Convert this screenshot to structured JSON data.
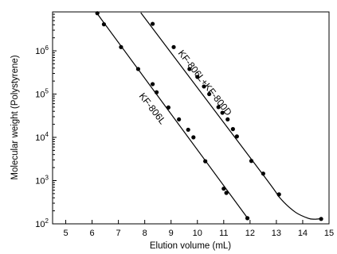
{
  "chart_data": {
    "type": "scatter",
    "xlabel": "Elution volume (mL)",
    "ylabel": "Molecular weight (Polystyrene)",
    "xlim": [
      4.5,
      15
    ],
    "ylim_log10": [
      2,
      6.9
    ],
    "y_scale": "log",
    "grid": false,
    "x_ticks": [
      5,
      6,
      7,
      8,
      9,
      10,
      11,
      12,
      13,
      14,
      15
    ],
    "x_tick_labels": [
      "5",
      "6",
      "7",
      "8",
      "9",
      "10",
      "11",
      "12",
      "13",
      "14",
      "15"
    ],
    "y_ticks": [
      100,
      1000,
      10000,
      100000,
      1000000
    ],
    "y_tick_labels": [
      {
        "base": "10",
        "exp": "2"
      },
      {
        "base": "10",
        "exp": "3"
      },
      {
        "base": "10",
        "exp": "4"
      },
      {
        "base": "10",
        "exp": "5"
      },
      {
        "base": "10",
        "exp": "6"
      }
    ],
    "series": [
      {
        "name": "KF-806L",
        "points": [
          {
            "x": 6.2,
            "y": 7400000
          },
          {
            "x": 6.45,
            "y": 4100000
          },
          {
            "x": 7.1,
            "y": 1220000
          },
          {
            "x": 7.75,
            "y": 380000
          },
          {
            "x": 8.3,
            "y": 170000
          },
          {
            "x": 8.45,
            "y": 110000
          },
          {
            "x": 8.9,
            "y": 49000
          },
          {
            "x": 9.3,
            "y": 26000
          },
          {
            "x": 9.65,
            "y": 15000
          },
          {
            "x": 9.85,
            "y": 10000
          },
          {
            "x": 10.3,
            "y": 2800
          },
          {
            "x": 11.0,
            "y": 650
          },
          {
            "x": 11.1,
            "y": 520
          },
          {
            "x": 11.9,
            "y": 135
          }
        ],
        "curve": [
          {
            "x": 6.15,
            "y": 7900000
          },
          {
            "x": 11.95,
            "y": 125
          }
        ]
      },
      {
        "name": "KF-806L+KF-800D",
        "points": [
          {
            "x": 8.3,
            "y": 4200000
          },
          {
            "x": 9.1,
            "y": 1220000
          },
          {
            "x": 9.7,
            "y": 380000
          },
          {
            "x": 10.0,
            "y": 250000
          },
          {
            "x": 10.25,
            "y": 150000
          },
          {
            "x": 10.45,
            "y": 100000
          },
          {
            "x": 10.8,
            "y": 50000
          },
          {
            "x": 10.95,
            "y": 37000
          },
          {
            "x": 11.15,
            "y": 26000
          },
          {
            "x": 11.35,
            "y": 15500
          },
          {
            "x": 11.5,
            "y": 10500
          },
          {
            "x": 12.05,
            "y": 2850
          },
          {
            "x": 12.5,
            "y": 1450
          },
          {
            "x": 13.1,
            "y": 480
          },
          {
            "x": 14.7,
            "y": 130
          }
        ],
        "curve": [
          {
            "x": 7.85,
            "y": 7600000
          },
          {
            "x": 12.5,
            "y": 1350
          },
          {
            "x": 13.1,
            "y": 420
          },
          {
            "x": 13.7,
            "y": 190
          },
          {
            "x": 14.2,
            "y": 135
          },
          {
            "x": 14.45,
            "y": 128
          },
          {
            "x": 14.7,
            "y": 132
          }
        ]
      }
    ]
  }
}
